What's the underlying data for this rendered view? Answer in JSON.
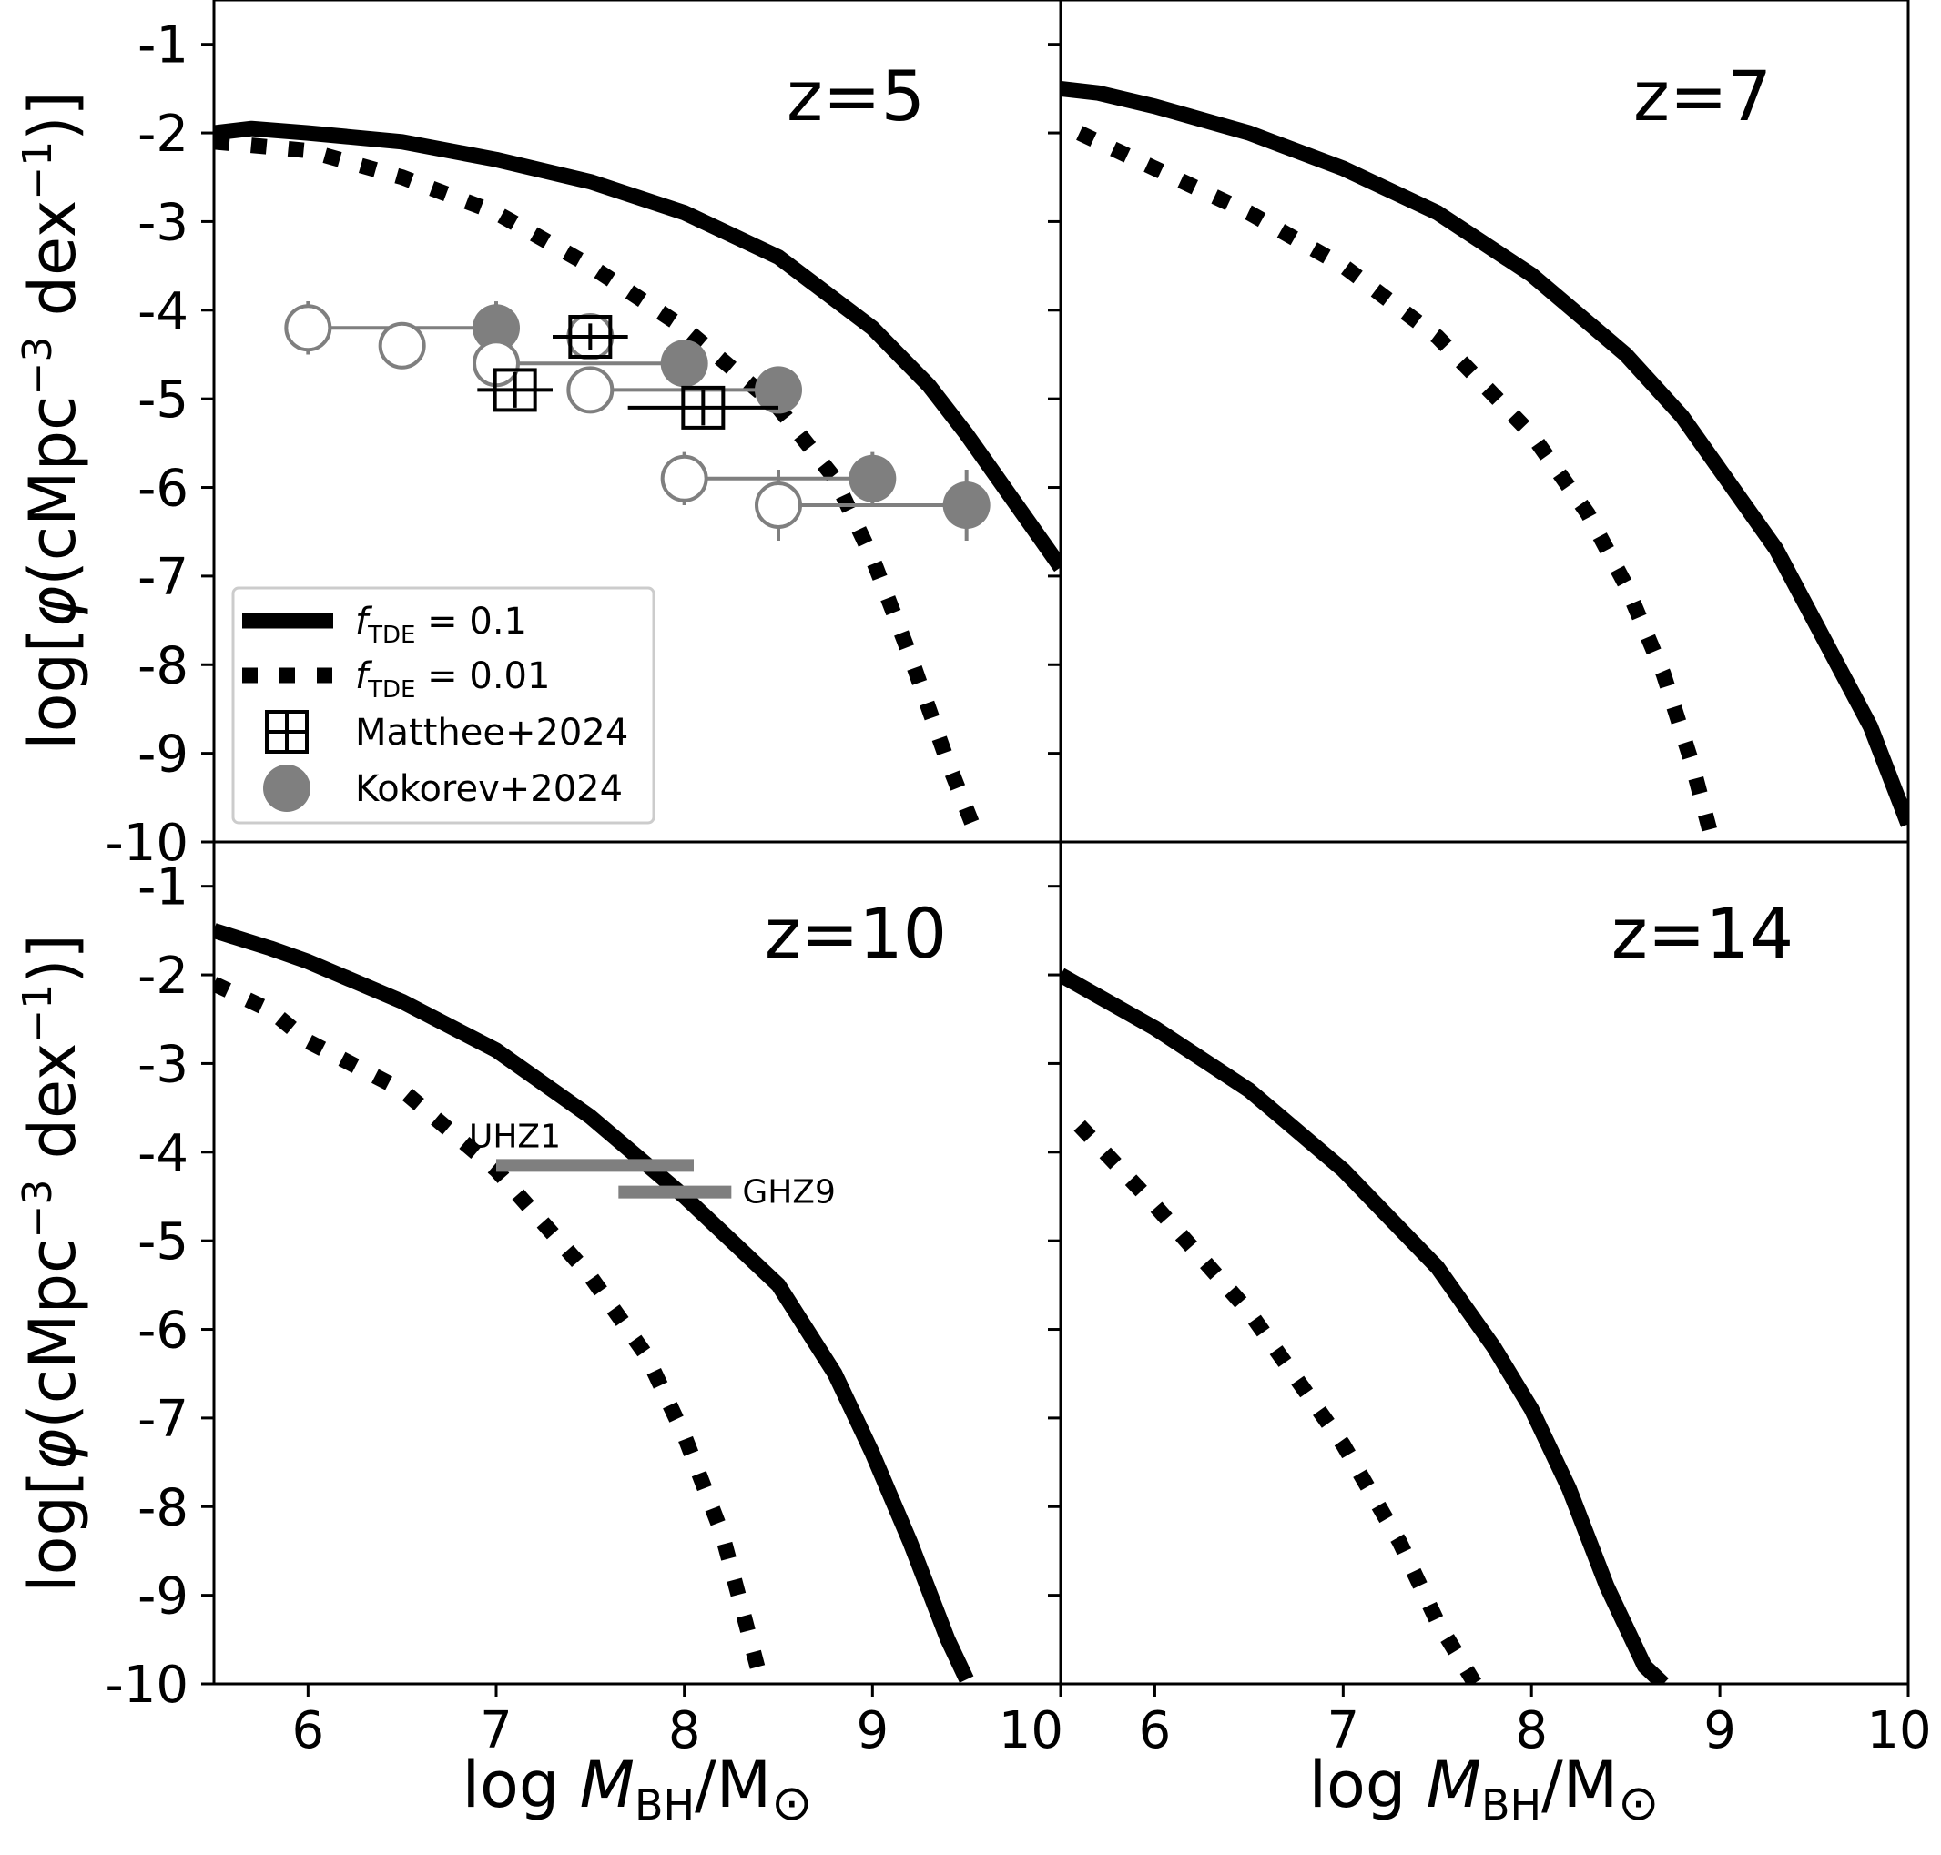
{
  "chart_data": {
    "type": "line",
    "title": "",
    "xlabel": {
      "prefix": "log ",
      "var": "M",
      "sub": "BH",
      "suffix": "/M",
      "sun": "⊙"
    },
    "ylabel": {
      "prefix": "log[",
      "phi": "φ",
      "mid": "(cMpc",
      "sup3": "−3",
      "dex": " dex",
      "supm1": "−1",
      "end": ")]"
    },
    "xlim": [
      5.5,
      10
    ],
    "ylim": [
      -10,
      -0.5
    ],
    "xticks": [
      6,
      7,
      8,
      9,
      10
    ],
    "yticks": [
      -1,
      -2,
      -3,
      -4,
      -5,
      -6,
      -7,
      -8,
      -9,
      -10
    ],
    "xtick_labels": [
      "6",
      "7",
      "8",
      "9",
      "10"
    ],
    "ytick_labels": [
      "-1",
      "-2",
      "-3",
      "-4",
      "-5",
      "-6",
      "-7",
      "-8",
      "-9",
      "-10"
    ],
    "legend": {
      "location": "lower-left of top-left panel",
      "entries": [
        {
          "var": "f",
          "sub": "TDE",
          "text": " = 0.1"
        },
        {
          "var": "f",
          "sub": "TDE",
          "text": " = 0.01"
        },
        {
          "text": "Matthee+2024"
        },
        {
          "text": "Kokorev+2024"
        }
      ]
    },
    "panels": [
      {
        "label": "z=5",
        "series": [
          {
            "name": "fTDE = 0.1",
            "style": "solid",
            "x": [
              5.5,
              5.7,
              6.0,
              6.5,
              7.0,
              7.5,
              8.0,
              8.5,
              9.0,
              9.3,
              9.5,
              9.7,
              9.9,
              10.0
            ],
            "y": [
              -2.0,
              -1.95,
              -2.0,
              -2.1,
              -2.3,
              -2.55,
              -2.9,
              -3.4,
              -4.2,
              -4.85,
              -5.4,
              -6.0,
              -6.6,
              -6.9
            ]
          },
          {
            "name": "fTDE = 0.01",
            "style": "dotted",
            "x": [
              5.5,
              6.0,
              6.5,
              7.0,
              7.5,
              8.0,
              8.5,
              8.8,
              9.0,
              9.2,
              9.4,
              9.55
            ],
            "y": [
              -2.1,
              -2.2,
              -2.5,
              -2.9,
              -3.5,
              -4.2,
              -5.1,
              -5.9,
              -6.8,
              -7.9,
              -9.1,
              -9.9
            ]
          }
        ],
        "observations": {
          "Kokorev+2024": [
            {
              "x": 7.0,
              "y": -4.2,
              "xerr_lo": 1.0,
              "xerr_hi": 0.0,
              "yerr": 0.3,
              "lower_marker_x": 6.0
            },
            {
              "x": 8.0,
              "y": -4.6,
              "xerr_lo": 1.0,
              "xerr_hi": 0.0,
              "yerr": 0.2,
              "lower_marker_x": 7.0
            },
            {
              "x": 8.5,
              "y": -4.9,
              "xerr_lo": 1.0,
              "xerr_hi": 0.0,
              "yerr": 0.2,
              "lower_marker_x": 7.5
            },
            {
              "x": 9.0,
              "y": -5.9,
              "xerr_lo": 1.0,
              "xerr_hi": 0.0,
              "yerr": 0.3,
              "lower_marker_x": 8.0
            },
            {
              "x": 9.5,
              "y": -6.2,
              "xerr_lo": 1.0,
              "xerr_hi": 0.0,
              "yerr": 0.4,
              "lower_marker_x": 8.5
            }
          ],
          "open_markers": [
            {
              "x": 6.5,
              "y": -4.4
            },
            {
              "x": 7.5,
              "y": -4.3
            }
          ],
          "Matthee+2024": [
            {
              "x": 7.5,
              "y": -4.3,
              "xerr_lo": 0.2,
              "xerr_hi": 0.2,
              "yerr": 0.15
            },
            {
              "x": 7.1,
              "y": -4.9,
              "xerr_lo": 0.2,
              "xerr_hi": 0.2,
              "yerr": 0.2
            },
            {
              "x": 8.1,
              "y": -5.1,
              "xerr_lo": 0.4,
              "xerr_hi": 0.4,
              "yerr": 0.2
            }
          ]
        }
      },
      {
        "label": "z=7",
        "series": [
          {
            "name": "fTDE = 0.1",
            "style": "solid",
            "x": [
              5.5,
              5.7,
              6.0,
              6.5,
              7.0,
              7.5,
              8.0,
              8.5,
              8.8,
              9.0,
              9.3,
              9.5,
              9.8,
              10.0
            ],
            "y": [
              -1.5,
              -1.55,
              -1.7,
              -2.0,
              -2.4,
              -2.9,
              -3.6,
              -4.5,
              -5.2,
              -5.8,
              -6.7,
              -7.5,
              -8.7,
              -9.8
            ]
          },
          {
            "name": "fTDE = 0.01",
            "style": "dotted",
            "x": [
              5.6,
              6.0,
              6.5,
              7.0,
              7.5,
              8.0,
              8.3,
              8.5,
              8.7,
              8.85,
              8.95
            ],
            "y": [
              -2.0,
              -2.4,
              -2.9,
              -3.5,
              -4.3,
              -5.4,
              -6.3,
              -7.1,
              -8.1,
              -9.1,
              -9.9
            ]
          }
        ]
      },
      {
        "label": "z=10",
        "series": [
          {
            "name": "fTDE = 0.1",
            "style": "solid",
            "x": [
              5.5,
              5.8,
              6.0,
              6.5,
              7.0,
              7.5,
              8.0,
              8.5,
              8.8,
              9.0,
              9.2,
              9.4,
              9.5
            ],
            "y": [
              -1.5,
              -1.7,
              -1.85,
              -2.3,
              -2.85,
              -3.6,
              -4.5,
              -5.5,
              -6.5,
              -7.4,
              -8.4,
              -9.5,
              -9.95
            ]
          },
          {
            "name": "fTDE = 0.01",
            "style": "dotted",
            "x": [
              5.5,
              5.8,
              6.0,
              6.5,
              7.0,
              7.5,
              7.8,
              8.0,
              8.2,
              8.3,
              8.4
            ],
            "y": [
              -2.1,
              -2.4,
              -2.75,
              -3.3,
              -4.2,
              -5.4,
              -6.3,
              -7.2,
              -8.3,
              -9.1,
              -9.9
            ]
          }
        ],
        "annotations": [
          {
            "text": "UHZ1",
            "x": [
              7.0,
              8.05
            ],
            "y": -4.15
          },
          {
            "text": "GHZ9",
            "x": [
              7.65,
              8.25
            ],
            "y": -4.45
          }
        ]
      },
      {
        "label": "z=14",
        "series": [
          {
            "name": "fTDE = 0.1",
            "style": "solid",
            "x": [
              5.5,
              6.0,
              6.5,
              7.0,
              7.5,
              7.8,
              8.0,
              8.2,
              8.4,
              8.6,
              8.7
            ],
            "y": [
              -2.0,
              -2.6,
              -3.3,
              -4.2,
              -5.3,
              -6.2,
              -6.9,
              -7.8,
              -8.9,
              -9.8,
              -10.0
            ]
          },
          {
            "name": "fTDE = 0.01",
            "style": "dotted",
            "x": [
              5.6,
              6.0,
              6.5,
              7.0,
              7.3,
              7.5,
              7.7
            ],
            "y": [
              -3.7,
              -4.6,
              -5.8,
              -7.3,
              -8.4,
              -9.3,
              -10.0
            ]
          }
        ]
      }
    ]
  }
}
